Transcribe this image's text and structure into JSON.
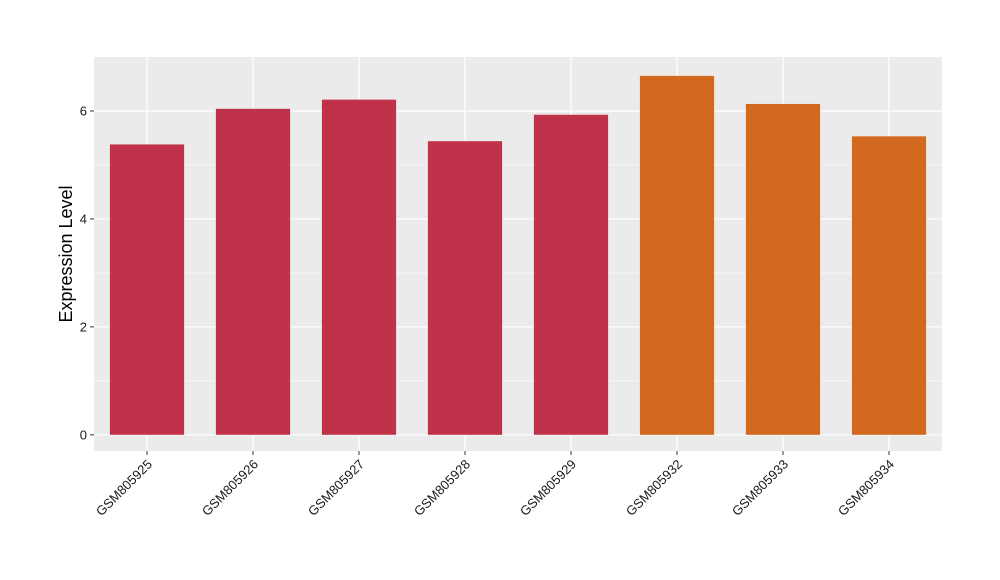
{
  "chart_data": {
    "type": "bar",
    "title": "",
    "xlabel": "",
    "ylabel": "Expression Level",
    "categories": [
      "GSM805925",
      "GSM805926",
      "GSM805927",
      "GSM805928",
      "GSM805929",
      "GSM805932",
      "GSM805933",
      "GSM805934"
    ],
    "values": [
      5.38,
      6.04,
      6.21,
      5.44,
      5.93,
      6.65,
      6.13,
      5.53
    ],
    "bar_colors": [
      "#c0314a",
      "#c0314a",
      "#c0314a",
      "#c0314a",
      "#c0314a",
      "#d2691e",
      "#d2691e",
      "#d2691e"
    ],
    "ylim": [
      -0.3,
      7.0
    ],
    "yticks": [
      0,
      2,
      4,
      6
    ],
    "grid": true,
    "panel_background": "#ebebeb",
    "grid_color": "#ffffff"
  }
}
